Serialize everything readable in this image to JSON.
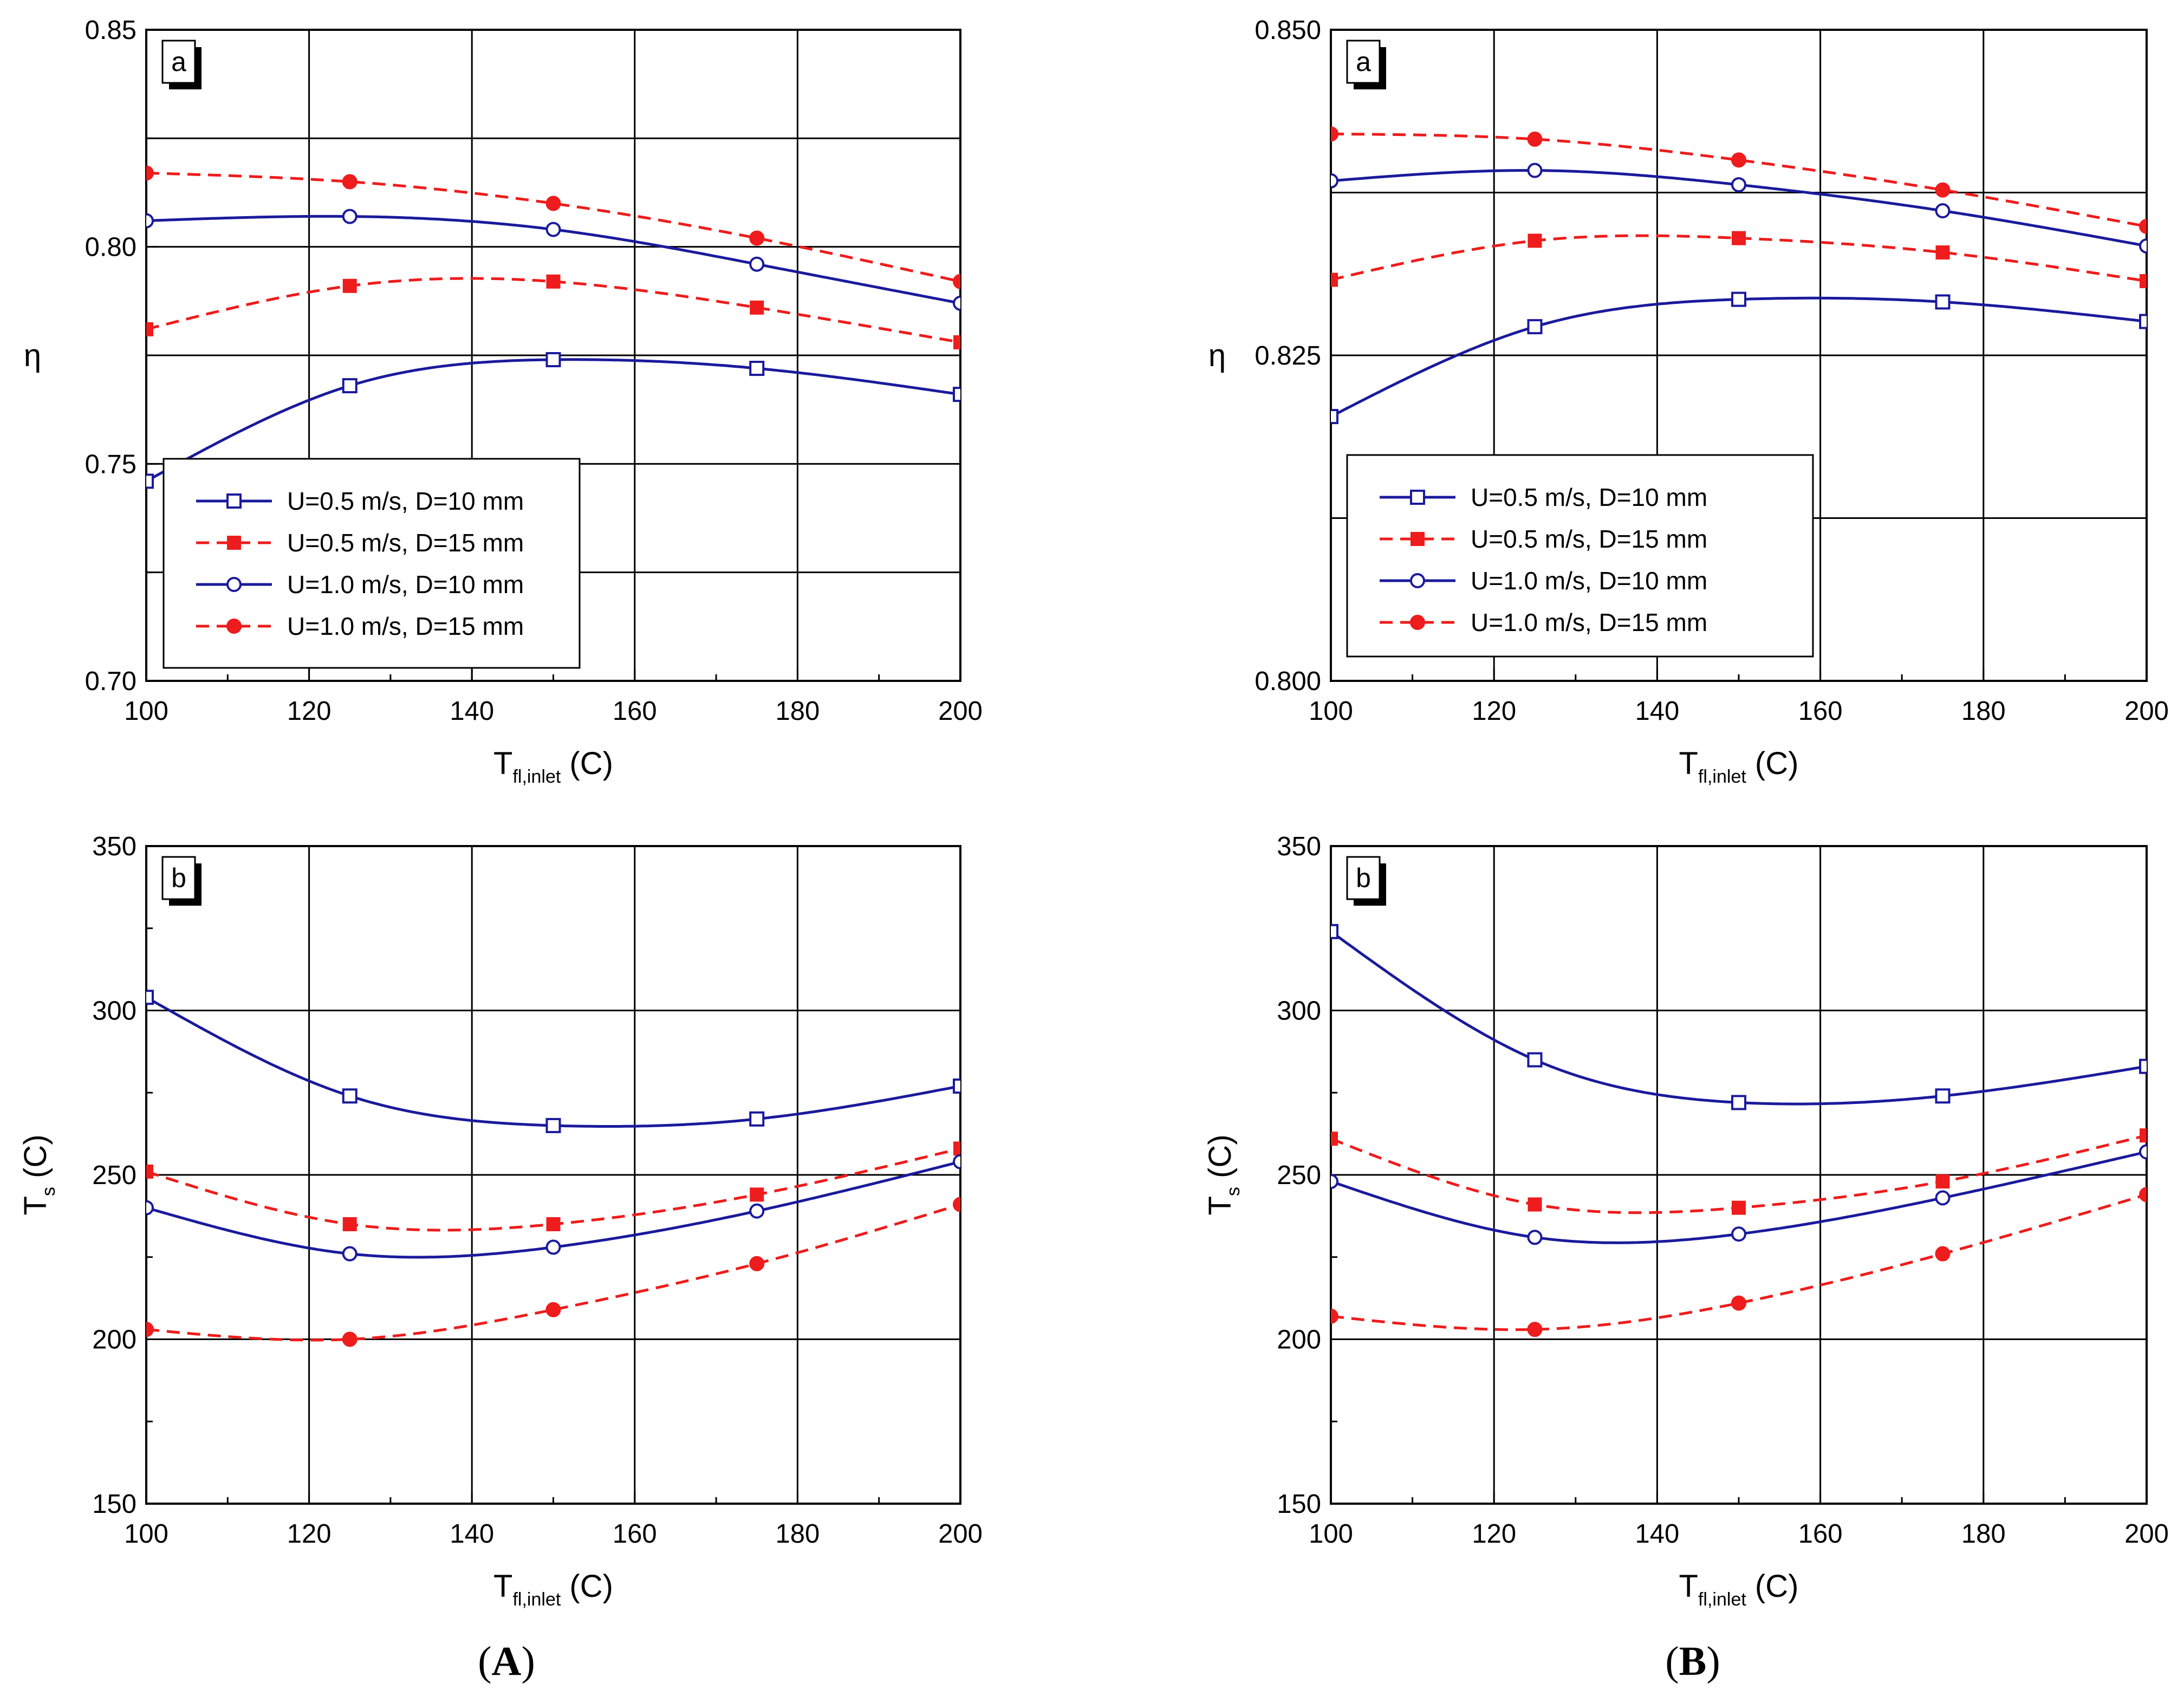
{
  "colors": {
    "blue": "#1a1a9c",
    "red": "#ee1c1c",
    "grid": "#000000"
  },
  "series_legend": [
    {
      "label": "U=0.5 m/s, D=10 mm",
      "color": "#1a1a9c",
      "dash": false,
      "marker": "square-open"
    },
    {
      "label": "U=0.5 m/s, D=15 mm",
      "color": "#ee1c1c",
      "dash": true,
      "marker": "square-filled"
    },
    {
      "label": "U=1.0 m/s, D=10 mm",
      "color": "#1a1a9c",
      "dash": false,
      "marker": "circle-open"
    },
    {
      "label": "U=1.0 m/s, D=15 mm",
      "color": "#ee1c1c",
      "dash": true,
      "marker": "circle-filled"
    }
  ],
  "x_label_main": "T",
  "x_label_sub": "fl,inlet",
  "x_label_unit": " (C)",
  "captions": {
    "A": {
      "open": "(",
      "letter": "A",
      "close": ")"
    },
    "B": {
      "open": "(",
      "letter": "B",
      "close": ")"
    }
  },
  "chart_data": [
    {
      "id": "A-a",
      "type": "line",
      "tag": "a",
      "ylabel_main": "η",
      "ylabel_sub": "",
      "xlim": [
        100,
        200
      ],
      "ylim": [
        0.7,
        0.85
      ],
      "xticks": [
        "100",
        "120",
        "140",
        "160",
        "180",
        "200"
      ],
      "yticks": [
        "0.70",
        "0.75",
        "0.80",
        "0.85"
      ],
      "ytick_values": [
        0.7,
        0.75,
        0.8,
        0.85
      ],
      "hgrid": [
        0.725,
        0.75,
        0.775,
        0.8,
        0.825
      ],
      "x": [
        100,
        125,
        150,
        175,
        200
      ],
      "series": [
        {
          "name": "U=0.5 m/s, D=10 mm",
          "values": [
            0.746,
            0.768,
            0.774,
            0.772,
            0.766
          ]
        },
        {
          "name": "U=0.5 m/s, D=15 mm",
          "values": [
            0.781,
            0.791,
            0.792,
            0.786,
            0.778
          ]
        },
        {
          "name": "U=1.0 m/s, D=10 mm",
          "values": [
            0.806,
            0.807,
            0.804,
            0.796,
            0.787
          ]
        },
        {
          "name": "U=1.0 m/s, D=15 mm",
          "values": [
            0.817,
            0.815,
            0.81,
            0.802,
            0.792
          ]
        }
      ],
      "legend": "center-left"
    },
    {
      "id": "B-a",
      "type": "line",
      "tag": "a",
      "ylabel_main": "η",
      "ylabel_sub": "",
      "xlim": [
        100,
        200
      ],
      "ylim": [
        0.8,
        0.85
      ],
      "xticks": [
        "100",
        "120",
        "140",
        "160",
        "180",
        "200"
      ],
      "yticks": [
        "0.800",
        "0.825",
        "0.850"
      ],
      "ytick_values": [
        0.8,
        0.825,
        0.85
      ],
      "hgrid": [
        0.8125,
        0.825,
        0.8375
      ],
      "x": [
        100,
        125,
        150,
        175,
        200
      ],
      "series": [
        {
          "name": "U=0.5 m/s, D=10 mm",
          "values": [
            0.8203,
            0.8272,
            0.8293,
            0.8291,
            0.8276
          ]
        },
        {
          "name": "U=0.5 m/s, D=15 mm",
          "values": [
            0.8308,
            0.8338,
            0.834,
            0.8329,
            0.8307
          ]
        },
        {
          "name": "U=1.0 m/s, D=10 mm",
          "values": [
            0.8384,
            0.8392,
            0.8381,
            0.8361,
            0.8334
          ]
        },
        {
          "name": "U=1.0 m/s, D=15 mm",
          "values": [
            0.842,
            0.8416,
            0.84,
            0.8377,
            0.8349
          ]
        }
      ],
      "legend": "bottom-left"
    },
    {
      "id": "A-b",
      "type": "line",
      "tag": "b",
      "ylabel_main": "T",
      "ylabel_sub": "s",
      "ylabel_unit": " (C)",
      "xlim": [
        100,
        200
      ],
      "ylim": [
        150,
        350
      ],
      "xticks": [
        "100",
        "120",
        "140",
        "160",
        "180",
        "200"
      ],
      "yticks": [
        "150",
        "200",
        "250",
        "300",
        "350"
      ],
      "ytick_values": [
        150,
        200,
        250,
        300,
        350
      ],
      "hgrid": [
        200,
        250,
        300
      ],
      "x": [
        100,
        125,
        150,
        175,
        200
      ],
      "series": [
        {
          "name": "U=0.5 m/s, D=10 mm",
          "values": [
            304,
            274,
            265,
            267,
            277
          ]
        },
        {
          "name": "U=0.5 m/s, D=15 mm",
          "values": [
            251,
            235,
            235,
            244,
            258
          ]
        },
        {
          "name": "U=1.0 m/s, D=10 mm",
          "values": [
            240,
            226,
            228,
            239,
            254
          ]
        },
        {
          "name": "U=1.0 m/s, D=15 mm",
          "values": [
            203,
            200,
            209,
            223,
            241
          ]
        }
      ]
    },
    {
      "id": "B-b",
      "type": "line",
      "tag": "b",
      "ylabel_main": "T",
      "ylabel_sub": "s",
      "ylabel_unit": " (C)",
      "xlim": [
        100,
        200
      ],
      "ylim": [
        150,
        350
      ],
      "xticks": [
        "100",
        "120",
        "140",
        "160",
        "180",
        "200"
      ],
      "yticks": [
        "150",
        "200",
        "250",
        "300",
        "350"
      ],
      "ytick_values": [
        150,
        200,
        250,
        300,
        350
      ],
      "hgrid": [
        200,
        250,
        300
      ],
      "x": [
        100,
        125,
        150,
        175,
        200
      ],
      "series": [
        {
          "name": "U=0.5 m/s, D=10 mm",
          "values": [
            324,
            285,
            272,
            274,
            283
          ]
        },
        {
          "name": "U=0.5 m/s, D=15 mm",
          "values": [
            261,
            241,
            240,
            248,
            262
          ]
        },
        {
          "name": "U=1.0 m/s, D=10 mm",
          "values": [
            248,
            231,
            232,
            243,
            257
          ]
        },
        {
          "name": "U=1.0 m/s, D=15 mm",
          "values": [
            207,
            203,
            211,
            226,
            244
          ]
        }
      ]
    }
  ]
}
